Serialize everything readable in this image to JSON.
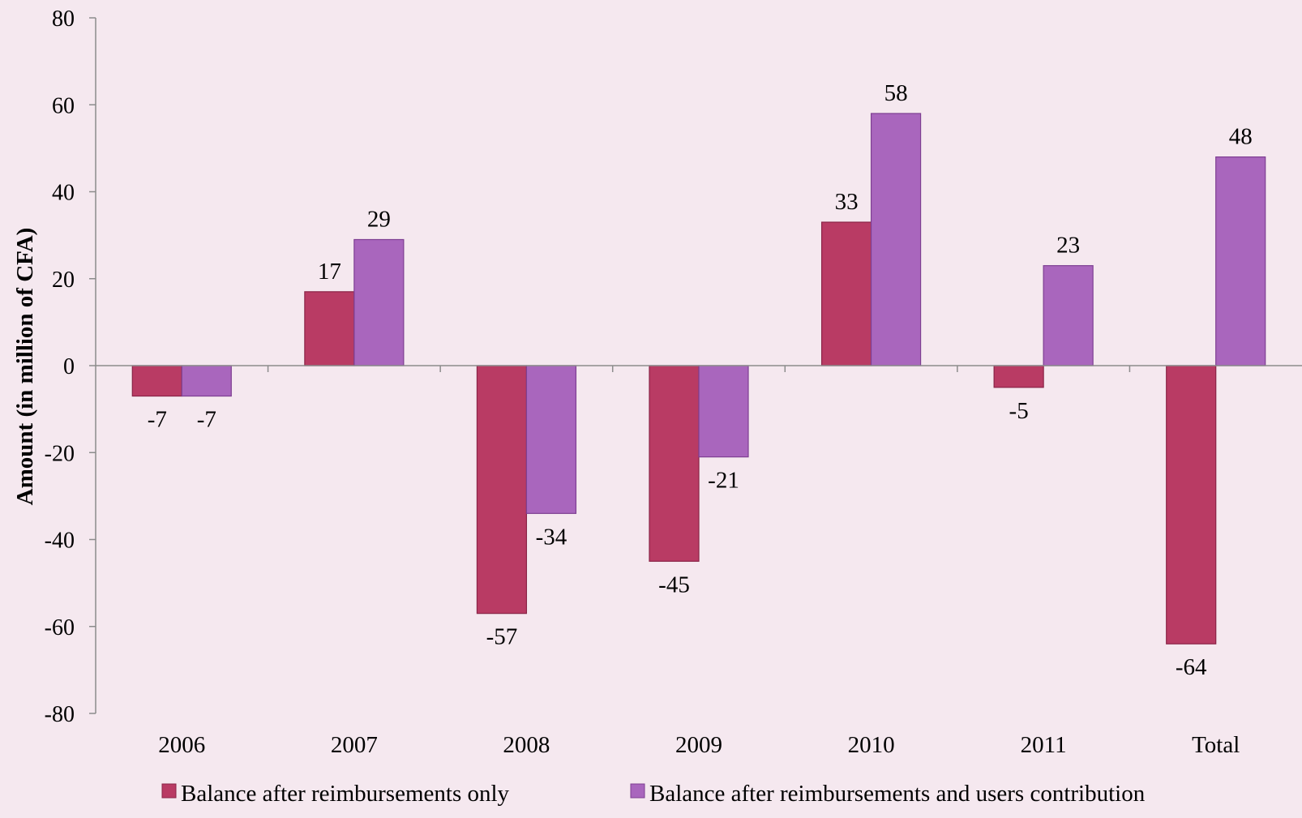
{
  "chart_data": {
    "type": "bar",
    "title": "",
    "xlabel": "",
    "ylabel": "Amount (in million of CFA)",
    "ylim": [
      -80,
      80
    ],
    "yticks": [
      -80,
      -60,
      -40,
      -20,
      0,
      20,
      40,
      60,
      80
    ],
    "grid": false,
    "legend_position": "bottom",
    "categories": [
      "2006",
      "2007",
      "2008",
      "2009",
      "2010",
      "2011",
      "Total"
    ],
    "series": [
      {
        "name": "Balance after reimbursements only",
        "color": "#b93b64",
        "values": [
          -7,
          17,
          -57,
          -45,
          33,
          -5,
          -64
        ]
      },
      {
        "name": "Balance after reimbursements and users contribution",
        "color": "#a966bd",
        "values": [
          -7,
          29,
          -34,
          -21,
          58,
          23,
          48
        ]
      }
    ]
  }
}
